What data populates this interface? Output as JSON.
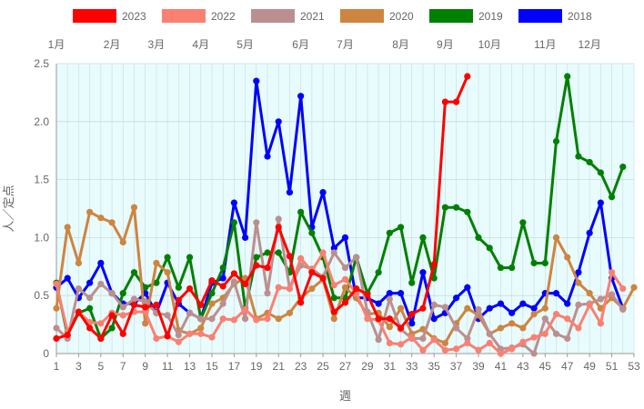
{
  "chart_data": {
    "type": "line",
    "title": "",
    "xlabel": "週",
    "ylabel": "人／定点",
    "xlim": [
      1,
      53
    ],
    "ylim": [
      0,
      2.5
    ],
    "x_ticks": [
      1,
      3,
      5,
      7,
      9,
      11,
      13,
      15,
      17,
      19,
      21,
      23,
      25,
      27,
      29,
      31,
      33,
      35,
      37,
      39,
      41,
      43,
      45,
      47,
      49,
      51,
      53
    ],
    "y_ticks": [
      0,
      0.5,
      1.0,
      1.5,
      2.0,
      2.5
    ],
    "y_tick_labels": [
      "0",
      "0.5",
      "1.0",
      "1.5",
      "2.0",
      "2.5"
    ],
    "background_color": "#e8fbfd",
    "grid": true,
    "legend_position": "top",
    "month_labels": [
      {
        "label": "1月",
        "week": 1
      },
      {
        "label": "2月",
        "week": 6
      },
      {
        "label": "3月",
        "week": 10
      },
      {
        "label": "4月",
        "week": 14
      },
      {
        "label": "5月",
        "week": 18
      },
      {
        "label": "6月",
        "week": 23
      },
      {
        "label": "7月",
        "week": 27
      },
      {
        "label": "8月",
        "week": 32
      },
      {
        "label": "9月",
        "week": 36
      },
      {
        "label": "10月",
        "week": 40
      },
      {
        "label": "11月",
        "week": 45
      },
      {
        "label": "12月",
        "week": 49
      }
    ],
    "series": [
      {
        "name": "2023",
        "color": "#ff0000",
        "x_start": 1,
        "values": [
          0.13,
          0.16,
          0.36,
          0.22,
          0.13,
          0.33,
          0.17,
          0.42,
          0.4,
          0.42,
          0.15,
          0.46,
          0.56,
          0.42,
          0.63,
          0.58,
          0.69,
          0.6,
          0.76,
          0.74,
          1.09,
          0.84,
          0.44,
          0.7,
          0.65,
          0.36,
          0.44,
          0.56,
          0.51,
          0.3,
          0.3,
          0.22,
          0.34,
          0.39,
          0.77,
          2.17,
          2.17,
          2.39
        ]
      },
      {
        "name": "2022",
        "color": "#fa8072",
        "x_start": 1,
        "values": [
          0.6,
          0.19,
          0.36,
          0.27,
          0.26,
          0.35,
          0.33,
          0.36,
          0.36,
          0.13,
          0.15,
          0.1,
          0.17,
          0.17,
          0.14,
          0.3,
          0.29,
          0.38,
          0.29,
          0.3,
          0.57,
          0.56,
          0.82,
          0.71,
          0.87,
          0.59,
          0.64,
          0.52,
          0.3,
          0.29,
          0.09,
          0.08,
          0.14,
          0.03,
          0.12,
          0.03,
          0.04,
          0.09,
          0.03,
          0.09,
          0.0,
          0.04,
          0.1,
          0.14,
          0.17,
          0.34,
          0.3,
          0.22,
          0.42,
          0.26,
          0.7,
          0.56
        ]
      },
      {
        "name": "2021",
        "color": "#bc8f8f",
        "x_start": 1,
        "values": [
          0.22,
          0.13,
          0.56,
          0.48,
          0.6,
          0.52,
          0.4,
          0.47,
          0.45,
          0.35,
          0.33,
          0.16,
          0.35,
          0.3,
          0.3,
          0.43,
          0.62,
          0.3,
          1.13,
          0.52,
          1.16,
          0.56,
          0.76,
          0.73,
          0.66,
          0.87,
          0.74,
          0.83,
          0.36,
          0.12,
          0.47,
          0.21,
          0.13,
          0.13,
          0.42,
          0.4,
          0.22,
          0.13,
          0.38,
          0.17,
          0.04,
          0.05,
          0.08,
          0.0,
          0.3,
          0.17,
          0.13,
          0.42,
          0.43,
          0.47,
          0.51,
          0.38
        ]
      },
      {
        "name": "2020",
        "color": "#cd853f",
        "x_start": 1,
        "values": [
          0.39,
          1.09,
          0.78,
          1.22,
          1.17,
          1.13,
          0.96,
          1.26,
          0.26,
          0.78,
          0.7,
          0.2,
          0.17,
          0.22,
          0.43,
          0.48,
          0.6,
          0.65,
          0.3,
          0.35,
          0.3,
          0.35,
          0.48,
          0.56,
          0.64,
          0.3,
          0.57,
          0.48,
          0.34,
          0.35,
          0.23,
          0.39,
          0.17,
          0.21,
          0.13,
          0.09,
          0.26,
          0.39,
          0.33,
          0.17,
          0.22,
          0.26,
          0.22,
          0.34,
          0.39,
          1.0,
          0.83,
          0.61,
          0.52,
          0.39,
          0.48,
          0.39,
          0.57
        ]
      },
      {
        "name": "2019",
        "color": "#008000",
        "x_start": 1,
        "values": [
          0.61,
          0.16,
          0.35,
          0.39,
          0.13,
          0.22,
          0.52,
          0.7,
          0.57,
          0.61,
          0.83,
          0.57,
          0.83,
          0.3,
          0.52,
          0.74,
          1.13,
          0.39,
          0.83,
          0.87,
          0.87,
          0.7,
          1.22,
          1.04,
          0.83,
          0.48,
          0.48,
          0.83,
          0.52,
          0.7,
          1.04,
          1.09,
          0.61,
          1.0,
          0.65,
          1.26,
          1.26,
          1.22,
          1.0,
          0.91,
          0.74,
          0.74,
          1.13,
          0.78,
          0.78,
          1.83,
          2.39,
          1.7,
          1.65,
          1.56,
          1.35,
          1.61
        ]
      },
      {
        "name": "2018",
        "color": "#0000ff",
        "x_start": 1,
        "values": [
          0.57,
          0.65,
          0.48,
          0.61,
          0.78,
          0.52,
          0.43,
          0.43,
          0.52,
          0.35,
          0.61,
          0.43,
          0.35,
          0.3,
          0.61,
          0.65,
          1.3,
          1.0,
          2.35,
          1.7,
          2.0,
          1.39,
          2.22,
          1.09,
          1.39,
          0.91,
          1.0,
          0.48,
          0.48,
          0.43,
          0.52,
          0.52,
          0.26,
          0.7,
          0.3,
          0.35,
          0.48,
          0.57,
          0.3,
          0.39,
          0.43,
          0.35,
          0.43,
          0.39,
          0.52,
          0.52,
          0.43,
          0.7,
          1.04,
          1.3,
          0.65,
          0.39
        ]
      }
    ]
  }
}
